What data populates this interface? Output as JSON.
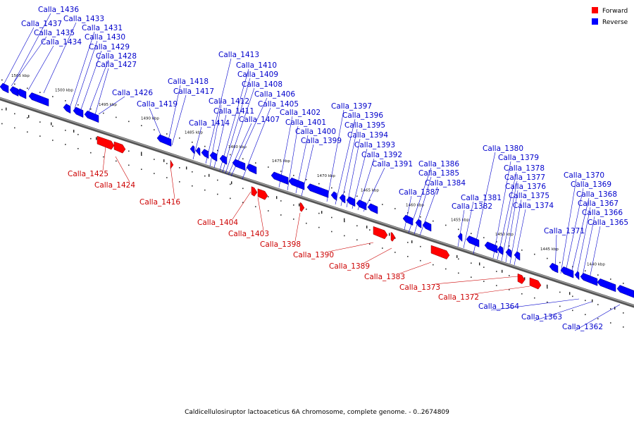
{
  "caption": "Caldicellulosiruptor lactoaceticus 6A chromosome, complete genome. - 0..2674809",
  "legend": [
    {
      "label": "Forward",
      "color": "#ff0000"
    },
    {
      "label": "Reverse",
      "color": "#0000ff"
    }
  ],
  "colors": {
    "forward": "#ff0000",
    "reverse": "#0000ff",
    "label_forward": "#cc0000",
    "label_reverse": "#0000cc",
    "backbone": "#777777"
  },
  "ticks": [
    "1505 kbp",
    "1500 kbp",
    "1495 kbp",
    "1490 kbp",
    "1485 kbp",
    "1480 kbp",
    "1475 kbp",
    "1470 kbp",
    "1465 kbp",
    "1460 kbp",
    "1455 kbp",
    "1450 kbp",
    "1445 kbp",
    "1440 kbp"
  ],
  "reverse_genes": [
    "Calla_1436",
    "Calla_1437",
    "Calla_1435",
    "Calla_1434",
    "Calla_1433",
    "Calla_1431",
    "Calla_1430",
    "Calla_1429",
    "Calla_1428",
    "Calla_1427",
    "Calla_1426",
    "Calla_1419",
    "Calla_1418",
    "Calla_1417",
    "Calla_1414",
    "Calla_1413",
    "Calla_1412",
    "Calla_1411",
    "Calla_1410",
    "Calla_1409",
    "Calla_1408",
    "Calla_1407",
    "Calla_1406",
    "Calla_1405",
    "Calla_1402",
    "Calla_1401",
    "Calla_1400",
    "Calla_1399",
    "Calla_1397",
    "Calla_1396",
    "Calla_1395",
    "Calla_1394",
    "Calla_1393",
    "Calla_1392",
    "Calla_1391",
    "Calla_1387",
    "Calla_1386",
    "Calla_1385",
    "Calla_1384",
    "Calla_1382",
    "Calla_1381",
    "Calla_1380",
    "Calla_1379",
    "Calla_1378",
    "Calla_1377",
    "Calla_1376",
    "Calla_1375",
    "Calla_1374",
    "Calla_1371",
    "Calla_1370",
    "Calla_1369",
    "Calla_1368",
    "Calla_1367",
    "Calla_1366",
    "Calla_1365",
    "Calla_1364",
    "Calla_1363",
    "Calla_1362"
  ],
  "forward_genes": [
    "Calla_1425",
    "Calla_1424",
    "Calla_1416",
    "Calla_1404",
    "Calla_1403",
    "Calla_1398",
    "Calla_1390",
    "Calla_1389",
    "Calla_1383",
    "Calla_1373",
    "Calla_1372"
  ]
}
